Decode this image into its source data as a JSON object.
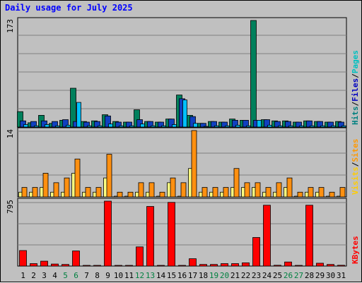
{
  "chart_data": {
    "type": "bar",
    "title": "Daily usage for July 2025",
    "days": [
      "1",
      "2",
      "3",
      "4",
      "5",
      "6",
      "7",
      "8",
      "9",
      "10",
      "11",
      "12",
      "13",
      "14",
      "15",
      "16",
      "17",
      "18",
      "19",
      "20",
      "21",
      "22",
      "23",
      "24",
      "25",
      "26",
      "27",
      "28",
      "29",
      "30",
      "31"
    ],
    "weekend_days": [
      "5",
      "6",
      "12",
      "13",
      "19",
      "20",
      "26",
      "27"
    ],
    "panels": [
      {
        "id": "top",
        "ymax_label": "173",
        "ymax": 173,
        "legend": [
          {
            "text": "Hits",
            "color": "#008080"
          },
          {
            "text": "/",
            "color": "#000000"
          },
          {
            "text": "Files",
            "color": "#0000c0"
          },
          {
            "text": "/",
            "color": "#000000"
          },
          {
            "text": "Pages",
            "color": "#00c0c0"
          }
        ],
        "series": [
          {
            "name": "Hits",
            "color": "#00805c",
            "values": [
              25,
              7,
              19,
              6,
              11,
              63,
              9,
              10,
              20,
              9,
              8,
              28,
              9,
              8,
              13,
              52,
              19,
              6,
              9,
              8,
              13,
              11,
              173,
              12,
              10,
              10,
              8,
              10,
              9,
              8,
              9
            ]
          },
          {
            "name": "Files",
            "color": "#1040c0",
            "values": [
              10,
              9,
              10,
              9,
              12,
              9,
              8,
              9,
              18,
              8,
              8,
              12,
              9,
              8,
              13,
              46,
              17,
              6,
              9,
              8,
              11,
              11,
              11,
              12,
              9,
              9,
              8,
              10,
              9,
              8,
              8
            ]
          },
          {
            "name": "Pages",
            "color": "#00c0ff",
            "values": [
              4,
              2,
              4,
              2,
              3,
              40,
              2,
              2,
              5,
              2,
              2,
              5,
              2,
              2,
              4,
              44,
              6,
              1,
              2,
              2,
              3,
              2,
              11,
              3,
              2,
              2,
              2,
              2,
              2,
              2,
              2
            ]
          }
        ]
      },
      {
        "id": "middle",
        "ymax_label": "14",
        "ymax": 14,
        "legend": [
          {
            "text": "Visits",
            "color": "#ffcc00"
          },
          {
            "text": "/",
            "color": "#000000"
          },
          {
            "text": "Sites",
            "color": "#ff9900"
          }
        ],
        "series": [
          {
            "name": "Visits",
            "color": "#ffff80",
            "values": [
              1,
              1,
              2,
              1,
              1,
              5,
              1,
              1,
              4,
              0,
              0,
              1,
              1,
              0,
              3,
              0,
              6,
              1,
              1,
              1,
              2,
              2,
              2,
              1,
              1,
              2,
              0,
              1,
              1,
              0,
              0
            ]
          },
          {
            "name": "Sites",
            "color": "#ff9010",
            "values": [
              2,
              2,
              5,
              3,
              4,
              8,
              2,
              2,
              9,
              1,
              1,
              3,
              3,
              1,
              4,
              3,
              14,
              2,
              2,
              2,
              6,
              3,
              3,
              2,
              3,
              4,
              1,
              2,
              2,
              1,
              2
            ]
          }
        ]
      },
      {
        "id": "bottom",
        "ymax_label": "795",
        "ymax": 795,
        "legend": [
          {
            "text": "KBytes",
            "color": "#ff0000"
          }
        ],
        "series": [
          {
            "name": "KBytes",
            "color": "#ff0000",
            "values": [
              190,
              30,
              60,
              25,
              20,
              185,
              5,
              5,
              795,
              5,
              5,
              235,
              730,
              5,
              780,
              5,
              90,
              20,
              20,
              30,
              30,
              40,
              350,
              745,
              10,
              50,
              5,
              745,
              35,
              20,
              10
            ]
          }
        ]
      }
    ]
  }
}
